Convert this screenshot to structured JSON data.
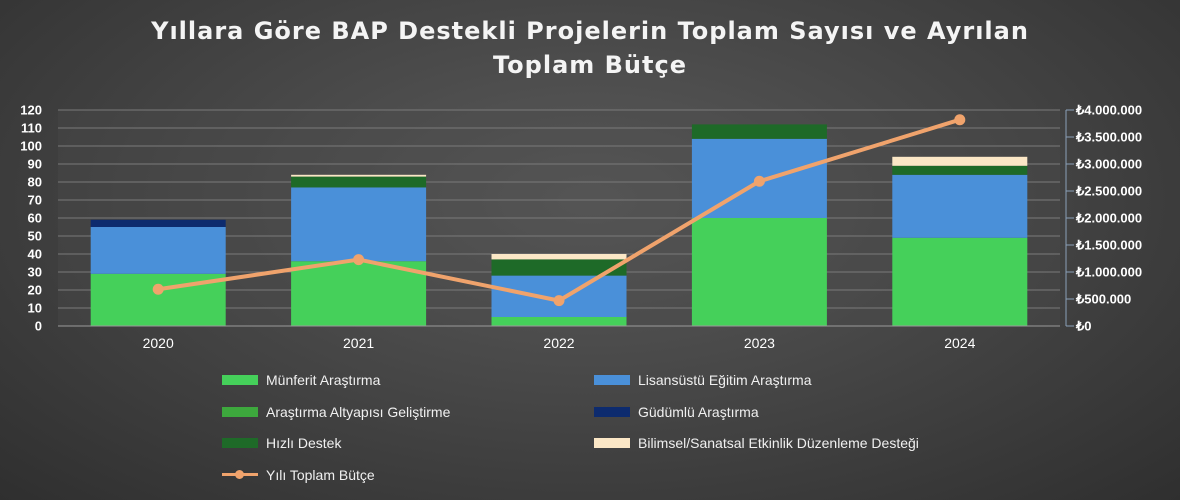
{
  "title": {
    "line1": "Yıllara Göre BAP Destekli Projelerin Toplam Sayısı ve Ayrılan",
    "line2": "Toplam Bütçe"
  },
  "chart_data": {
    "type": "bar",
    "stacked": true,
    "title": "Yıllara Göre BAP Destekli Projelerin Toplam Sayısı ve Ayrılan Toplam Bütçe",
    "categories": [
      "2020",
      "2021",
      "2022",
      "2023",
      "2024"
    ],
    "ylim": [
      0,
      120
    ],
    "yticks": [
      "0",
      "10",
      "20",
      "30",
      "40",
      "50",
      "60",
      "70",
      "80",
      "90",
      "100",
      "110",
      "120"
    ],
    "y2lim": [
      0,
      4000000
    ],
    "y2ticks": [
      "₺0",
      "₺500.000",
      "₺1.000.000",
      "₺1.500.000",
      "₺2.000.000",
      "₺2.500.000",
      "₺3.000.000",
      "₺3.500.000",
      "₺4.000.000"
    ],
    "grid": true,
    "legend_position": "bottom",
    "series": [
      {
        "name": "Münferit Araştırma",
        "color": "#45d05a",
        "values": [
          29,
          36,
          5,
          60,
          49
        ]
      },
      {
        "name": "Lisansüstü Eğitim Araştırma",
        "color": "#4a90d9",
        "values": [
          26,
          41,
          23,
          44,
          35
        ]
      },
      {
        "name": "Araştırma Altyapısı Geliştirme",
        "color": "#3da83d",
        "values": [
          0,
          0,
          0,
          0,
          0
        ]
      },
      {
        "name": "Güdümlü Araştırma",
        "color": "#0d2b6e",
        "values": [
          4,
          0,
          0,
          0,
          0
        ]
      },
      {
        "name": "Hızlı Destek",
        "color": "#1e6a28",
        "values": [
          0,
          6,
          9,
          8,
          5
        ]
      },
      {
        "name": "Bilimsel/Sanatsal Etkinlik Düzenleme Desteği",
        "color": "#fbe7c6",
        "values": [
          0,
          1,
          3,
          0,
          5
        ]
      }
    ],
    "line_series": {
      "name": "Yılı Toplam Bütçe",
      "axis": "secondary",
      "color": "#f0a36c",
      "values": [
        680000,
        1230000,
        470000,
        2680000,
        3820000
      ]
    }
  }
}
